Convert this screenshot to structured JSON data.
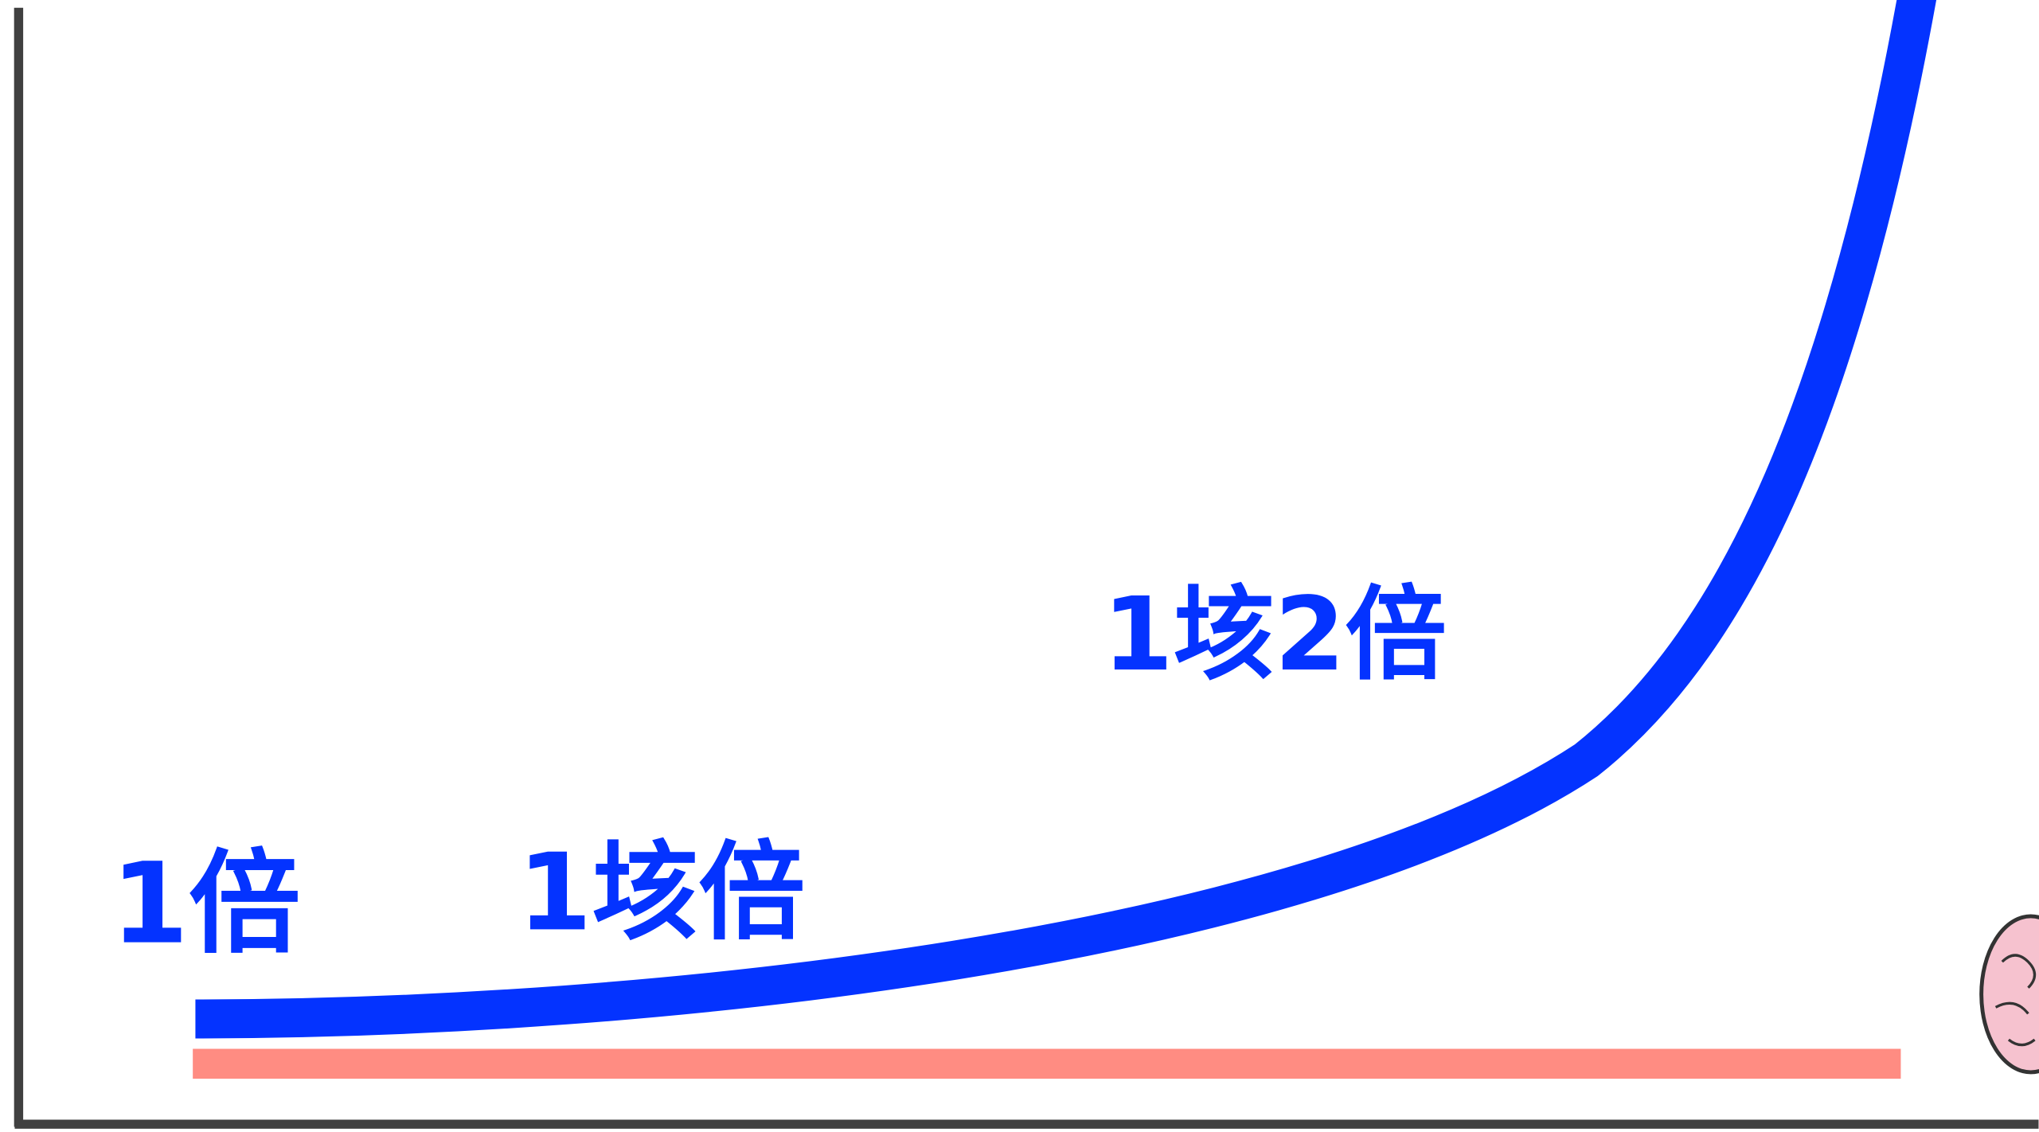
{
  "labels": [
    "1倍",
    "1垓倍",
    "1垓2倍"
  ]
}
